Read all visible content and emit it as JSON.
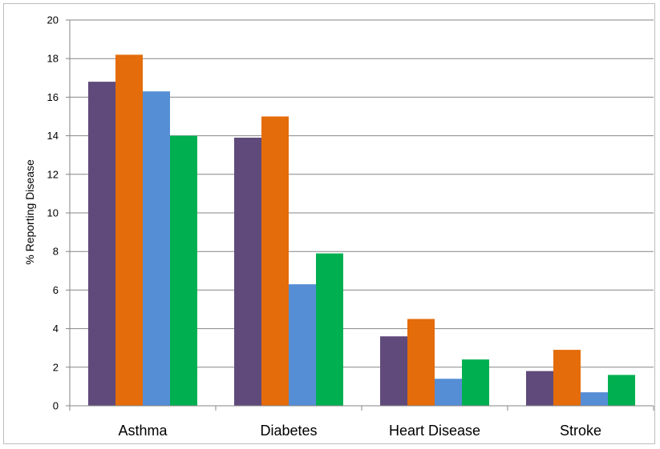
{
  "chart_data": {
    "type": "bar",
    "title": "",
    "xlabel": "",
    "ylabel": "% Reporting Disease",
    "categories": [
      "Asthma",
      "Diabetes",
      "Heart Disease",
      "Stroke"
    ],
    "ylim": [
      0,
      20
    ],
    "yticks": [
      0,
      2,
      4,
      6,
      8,
      10,
      12,
      14,
      16,
      18,
      20
    ],
    "grid": true,
    "legend": "none",
    "series": [
      {
        "color": "#604a7b",
        "values": [
          16.8,
          13.9,
          3.6,
          1.8
        ]
      },
      {
        "color": "#e46c0a",
        "values": [
          18.2,
          15.0,
          4.5,
          2.9
        ]
      },
      {
        "color": "#558ed5",
        "values": [
          16.3,
          6.3,
          1.4,
          0.7
        ]
      },
      {
        "color": "#00b050",
        "values": [
          14.0,
          7.9,
          2.4,
          1.6
        ]
      }
    ]
  }
}
